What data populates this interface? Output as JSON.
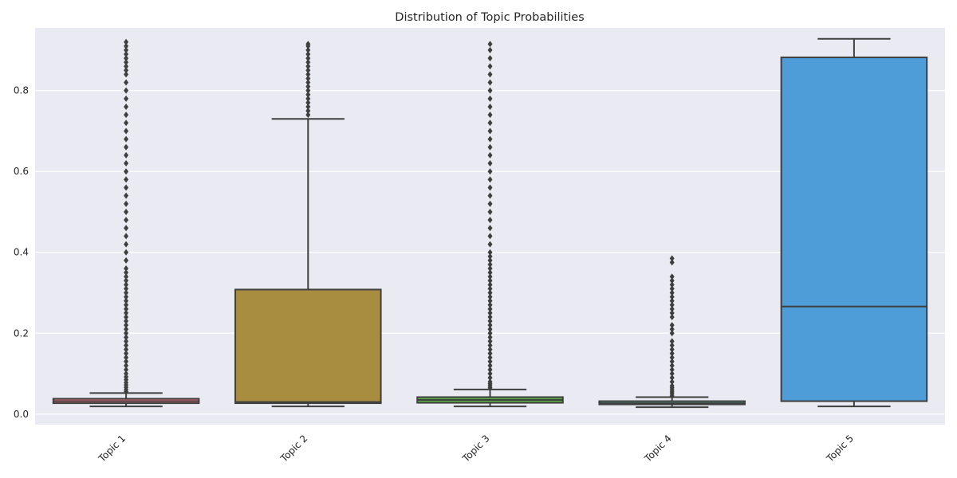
{
  "chart_data": {
    "type": "box",
    "title": "Distribution of Topic Probabilities",
    "xlabel": "",
    "ylabel": "",
    "ylim": [
      -0.026,
      0.955
    ],
    "y_ticks": [
      0.0,
      0.2,
      0.4,
      0.6,
      0.8
    ],
    "y_tick_labels": [
      "0.0",
      "0.2",
      "0.4",
      "0.6",
      "0.8"
    ],
    "grid": true,
    "categories": [
      "Topic 1",
      "Topic 2",
      "Topic 3",
      "Topic 4",
      "Topic 5"
    ],
    "boxes": [
      {
        "category": "Topic 1",
        "color": "#e3707f",
        "min": 0.019,
        "q1": 0.027,
        "median": 0.032,
        "q3": 0.038,
        "max": 0.052,
        "outliers": [
          0.055,
          0.06,
          0.066,
          0.072,
          0.078,
          0.085,
          0.092,
          0.1,
          0.11,
          0.12,
          0.13,
          0.14,
          0.15,
          0.16,
          0.17,
          0.18,
          0.19,
          0.2,
          0.21,
          0.22,
          0.23,
          0.24,
          0.25,
          0.26,
          0.27,
          0.28,
          0.29,
          0.3,
          0.31,
          0.32,
          0.33,
          0.34,
          0.35,
          0.36,
          0.38,
          0.4,
          0.42,
          0.44,
          0.46,
          0.48,
          0.5,
          0.52,
          0.54,
          0.56,
          0.58,
          0.6,
          0.62,
          0.64,
          0.66,
          0.68,
          0.7,
          0.72,
          0.74,
          0.76,
          0.78,
          0.8,
          0.82,
          0.84,
          0.85,
          0.86,
          0.87,
          0.88,
          0.89,
          0.9,
          0.91,
          0.92
        ]
      },
      {
        "category": "Topic 2",
        "color": "#a88c40",
        "min": 0.019,
        "q1": 0.027,
        "median": 0.03,
        "q3": 0.308,
        "max": 0.73,
        "outliers": [
          0.74,
          0.75,
          0.76,
          0.77,
          0.78,
          0.79,
          0.8,
          0.81,
          0.82,
          0.83,
          0.84,
          0.85,
          0.86,
          0.87,
          0.88,
          0.89,
          0.9,
          0.91,
          0.915
        ]
      },
      {
        "category": "Topic 3",
        "color": "#5aaa46",
        "min": 0.019,
        "q1": 0.028,
        "median": 0.035,
        "q3": 0.042,
        "max": 0.061,
        "outliers": [
          0.065,
          0.07,
          0.075,
          0.08,
          0.09,
          0.1,
          0.11,
          0.12,
          0.13,
          0.14,
          0.15,
          0.16,
          0.17,
          0.18,
          0.19,
          0.2,
          0.21,
          0.22,
          0.23,
          0.24,
          0.25,
          0.26,
          0.27,
          0.28,
          0.29,
          0.3,
          0.31,
          0.32,
          0.33,
          0.34,
          0.35,
          0.36,
          0.37,
          0.38,
          0.39,
          0.4,
          0.42,
          0.44,
          0.46,
          0.48,
          0.5,
          0.52,
          0.54,
          0.56,
          0.58,
          0.6,
          0.62,
          0.64,
          0.66,
          0.68,
          0.7,
          0.72,
          0.74,
          0.76,
          0.78,
          0.8,
          0.82,
          0.84,
          0.86,
          0.88,
          0.9,
          0.915
        ]
      },
      {
        "category": "Topic 4",
        "color": "#4fa58d",
        "min": 0.017,
        "q1": 0.024,
        "median": 0.027,
        "q3": 0.032,
        "max": 0.042,
        "outliers": [
          0.045,
          0.05,
          0.055,
          0.06,
          0.065,
          0.07,
          0.08,
          0.09,
          0.1,
          0.11,
          0.12,
          0.13,
          0.14,
          0.15,
          0.16,
          0.17,
          0.18,
          0.2,
          0.21,
          0.22,
          0.24,
          0.25,
          0.26,
          0.27,
          0.28,
          0.29,
          0.3,
          0.31,
          0.32,
          0.33,
          0.34,
          0.375,
          0.385
        ]
      },
      {
        "category": "Topic 5",
        "color": "#4f9dd8",
        "min": 0.019,
        "q1": 0.032,
        "median": 0.266,
        "q3": 0.882,
        "max": 0.928,
        "outliers": []
      }
    ]
  }
}
